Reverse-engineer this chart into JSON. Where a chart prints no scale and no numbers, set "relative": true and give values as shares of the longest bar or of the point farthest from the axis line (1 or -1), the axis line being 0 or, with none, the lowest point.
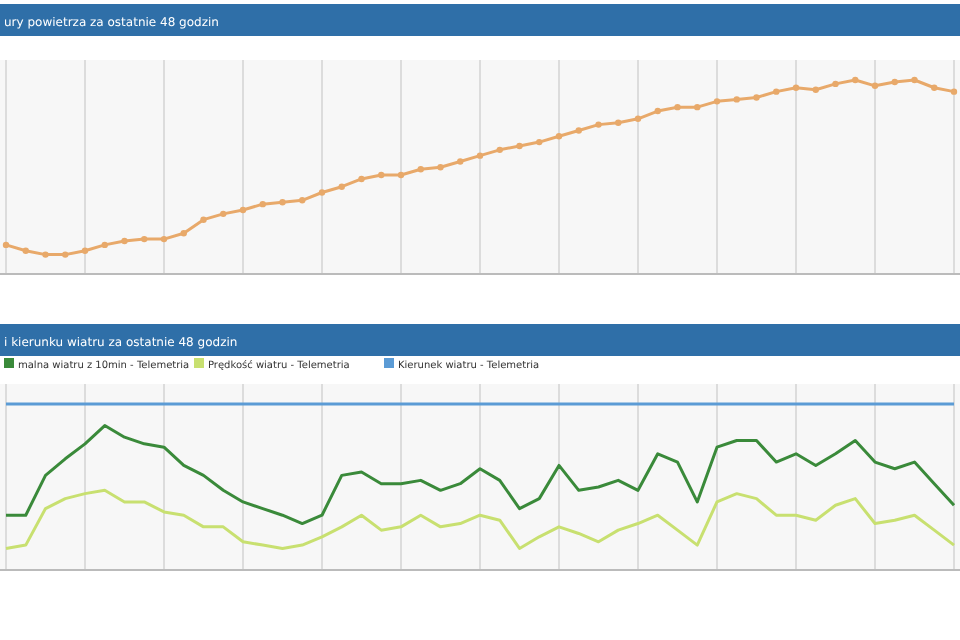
{
  "chart_data": [
    {
      "type": "line",
      "title": "ury powietrza za ostatnie 48 godzin",
      "relative": true,
      "marker": "circle",
      "grid": "x",
      "categories": [
        null,
        null,
        null,
        null,
        null,
        null,
        null,
        null,
        null,
        null,
        null,
        null,
        null,
        null,
        null,
        null,
        null,
        null,
        null,
        null,
        null,
        null,
        null,
        null,
        null,
        null,
        null,
        null,
        null,
        null,
        null,
        null,
        null,
        null,
        null,
        null,
        null,
        null,
        null,
        null,
        null,
        null,
        null,
        null,
        null,
        null,
        null,
        null,
        null
      ],
      "series": [
        {
          "color": "#e8a96a",
          "values": [
            0.15,
            0.12,
            0.1,
            0.1,
            0.12,
            0.15,
            0.17,
            0.18,
            0.18,
            0.21,
            0.28,
            0.31,
            0.33,
            0.36,
            0.37,
            0.38,
            0.42,
            0.45,
            0.49,
            0.51,
            0.51,
            0.54,
            0.55,
            0.58,
            0.61,
            0.64,
            0.66,
            0.68,
            0.71,
            0.74,
            0.77,
            0.78,
            0.8,
            0.84,
            0.86,
            0.86,
            0.89,
            0.9,
            0.91,
            0.94,
            0.96,
            0.95,
            0.98,
            1,
            0.97,
            0.99,
            1,
            0.96,
            0.94
          ]
        }
      ]
    },
    {
      "type": "line",
      "title": "i kierunku wiatru za ostatnie 48 godzin",
      "relative": true,
      "marker": "none",
      "grid": "x",
      "legend": "top left",
      "categories": [
        null,
        null,
        null,
        null,
        null,
        null,
        null,
        null,
        null,
        null,
        null,
        null,
        null,
        null,
        null,
        null,
        null,
        null,
        null,
        null,
        null,
        null,
        null,
        null,
        null,
        null,
        null,
        null,
        null,
        null,
        null,
        null,
        null,
        null,
        null,
        null,
        null,
        null,
        null,
        null,
        null,
        null,
        null,
        null,
        null,
        null,
        null,
        null,
        null
      ],
      "series": [
        {
          "name": "malna wiatru z 10min - Telemetria",
          "color": "#3a8a3a",
          "values": [
            0.33,
            0.33,
            0.57,
            0.67,
            0.76,
            0.87,
            0.8,
            0.76,
            0.74,
            0.63,
            0.57,
            0.48,
            0.41,
            0.37,
            0.33,
            0.28,
            0.33,
            0.57,
            0.59,
            0.52,
            0.52,
            0.54,
            0.48,
            0.52,
            0.61,
            0.54,
            0.37,
            0.43,
            0.63,
            0.48,
            0.5,
            0.54,
            0.48,
            0.7,
            0.65,
            0.41,
            0.74,
            0.78,
            0.78,
            0.65,
            0.7,
            0.63,
            0.7,
            0.78,
            0.65,
            0.61,
            0.65,
            0.52,
            0.39
          ]
        },
        {
          "name": "Prędkość wiatru - Telemetria",
          "color": "#c8e070",
          "values": [
            0.13,
            0.15,
            0.37,
            0.43,
            0.46,
            0.48,
            0.41,
            0.41,
            0.35,
            0.33,
            0.26,
            0.26,
            0.17,
            0.15,
            0.13,
            0.15,
            0.2,
            0.26,
            0.33,
            0.24,
            0.26,
            0.33,
            0.26,
            0.28,
            0.33,
            0.3,
            0.13,
            0.2,
            0.26,
            0.22,
            0.17,
            0.24,
            0.28,
            0.33,
            0.24,
            0.15,
            0.41,
            0.46,
            0.43,
            0.33,
            0.33,
            0.3,
            0.39,
            0.43,
            0.28,
            0.3,
            0.33,
            0.24,
            0.15
          ]
        },
        {
          "name": "Kierunek wiatru - Telemetria",
          "color": "#5b9bd5",
          "values": [
            1,
            1,
            1,
            1,
            1,
            1,
            1,
            1,
            1,
            1,
            1,
            1,
            1,
            1,
            1,
            1,
            1,
            1,
            1,
            1,
            1,
            1,
            1,
            1,
            1,
            1,
            1,
            1,
            1,
            1,
            1,
            1,
            1,
            1,
            1,
            1,
            1,
            1,
            1,
            1,
            1,
            1,
            1,
            1,
            1,
            1,
            1,
            1,
            1
          ]
        }
      ]
    }
  ]
}
